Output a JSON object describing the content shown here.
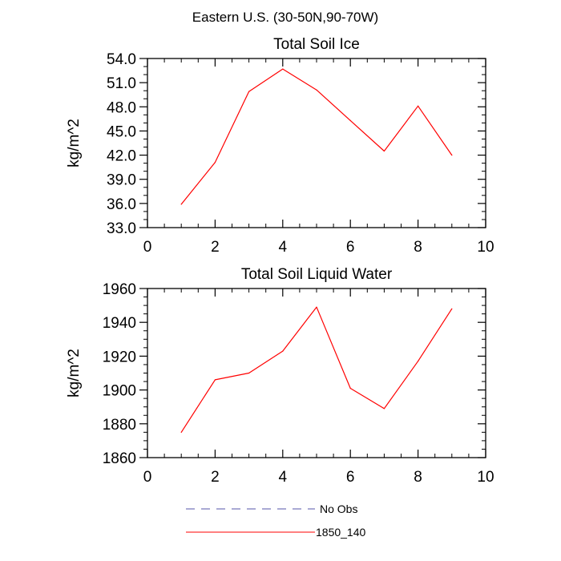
{
  "header": {
    "title": "Eastern U.S. (30-50N,90-70W)"
  },
  "chart_data": [
    {
      "type": "line",
      "title": "Total Soil Ice",
      "xlabel": "",
      "ylabel": "kg/m^2",
      "xlim": [
        0,
        10
      ],
      "ylim": [
        33,
        54
      ],
      "xticks": [
        0,
        2,
        4,
        6,
        8,
        10
      ],
      "xtick_labels": [
        "0",
        "2",
        "4",
        "6",
        "8",
        "10"
      ],
      "yticks": [
        33,
        36,
        39,
        42,
        45,
        48,
        51,
        54
      ],
      "ytick_labels": [
        "33.0",
        "36.0",
        "39.0",
        "42.0",
        "45.0",
        "48.0",
        "51.0",
        "54.0"
      ],
      "grid": false,
      "series": [
        {
          "name": "1850_140",
          "color": "#ff0000",
          "x": [
            1,
            2,
            3,
            4,
            5,
            6,
            7,
            8,
            9
          ],
          "values": [
            35.9,
            41.1,
            49.9,
            52.7,
            50.1,
            46.3,
            42.5,
            48.1,
            42.0
          ]
        }
      ]
    },
    {
      "type": "line",
      "title": "Total Soil Liquid Water",
      "xlabel": "",
      "ylabel": "kg/m^2",
      "xlim": [
        0,
        10
      ],
      "ylim": [
        1860,
        1960
      ],
      "xticks": [
        0,
        2,
        4,
        6,
        8,
        10
      ],
      "xtick_labels": [
        "0",
        "2",
        "4",
        "6",
        "8",
        "10"
      ],
      "yticks": [
        1860,
        1880,
        1900,
        1920,
        1940,
        1960
      ],
      "ytick_labels": [
        "1860",
        "1880",
        "1900",
        "1920",
        "1940",
        "1960"
      ],
      "grid": false,
      "series": [
        {
          "name": "1850_140",
          "color": "#ff0000",
          "x": [
            1,
            2,
            3,
            4,
            5,
            6,
            7,
            8,
            9
          ],
          "values": [
            1875,
            1906,
            1910,
            1923,
            1949,
            1901,
            1889,
            1917,
            1948
          ]
        }
      ]
    }
  ],
  "legend": {
    "placement": "bottom",
    "items": [
      {
        "label": "No Obs",
        "color": "#5555aa",
        "style": "dashed"
      },
      {
        "label": "1850_140",
        "color": "#ff0000",
        "style": "solid"
      }
    ]
  }
}
